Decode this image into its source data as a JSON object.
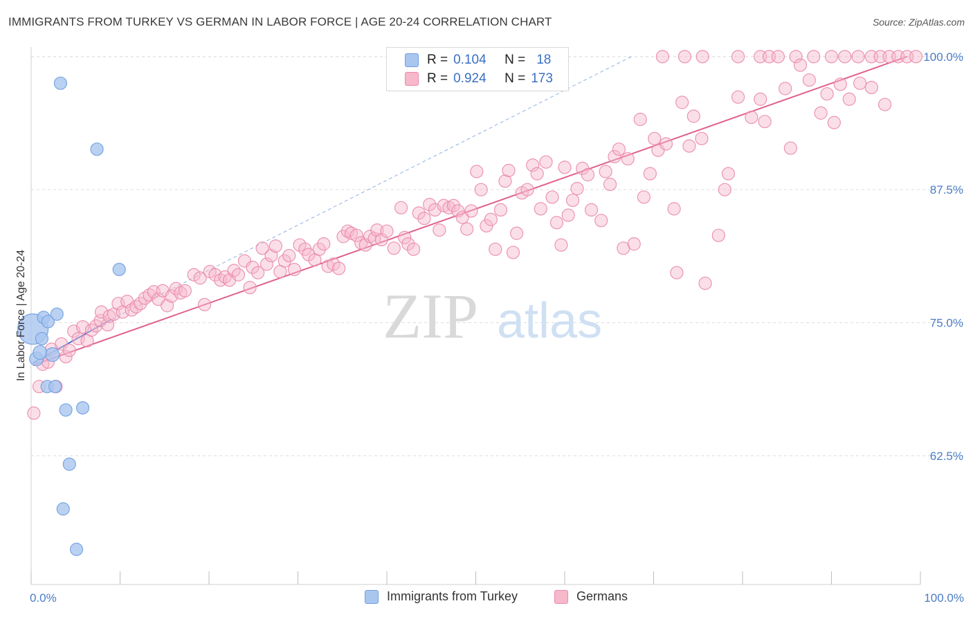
{
  "title": "IMMIGRANTS FROM TURKEY VS GERMAN IN LABOR FORCE | AGE 20-24 CORRELATION CHART",
  "source": "Source: ZipAtlas.com",
  "watermark": {
    "zip": "ZIP",
    "atlas": "atlas"
  },
  "legend": {
    "r_label": "R =",
    "n_label": "N =",
    "series": [
      {
        "name": "Immigrants from Turkey",
        "r": "0.104",
        "n": "18",
        "color": "#a9c6ef",
        "stroke": "#6f9fe0"
      },
      {
        "name": "Germans",
        "r": "0.924",
        "n": "173",
        "color": "#f7b8cb",
        "stroke": "#e98aa8"
      }
    ]
  },
  "chart_data": {
    "type": "scatter",
    "title": "IMMIGRANTS FROM TURKEY VS GERMAN IN LABOR FORCE | AGE 20-24 CORRELATION CHART",
    "xlabel": "",
    "ylabel": "In Labor Force | Age 20-24",
    "xlim": [
      0,
      100
    ],
    "ylim": [
      50.4,
      100.9
    ],
    "x_tick_labels": [
      "0.0%",
      "100.0%"
    ],
    "y_ticks": [
      62.5,
      75.0,
      87.5,
      100.0
    ],
    "y_tick_labels": [
      "62.5%",
      "75.0%",
      "87.5%",
      "100.0%"
    ],
    "grid": "horizontal dashed",
    "legend_position": "top-center",
    "series": [
      {
        "name": "Immigrants from Turkey",
        "color": "#a9c6ef",
        "stroke": "#6f9fe0",
        "trend": {
          "x0": 0.2,
          "y0": 71.2,
          "x1": 9.0,
          "y1": 75.3,
          "dashed_to": [
            67.5,
            100.0
          ]
        },
        "points": [
          [
            0.2,
            74.4,
            22
          ],
          [
            0.6,
            71.6,
            10
          ],
          [
            1.0,
            72.2,
            10
          ],
          [
            1.2,
            73.5,
            9
          ],
          [
            1.4,
            75.5,
            9
          ],
          [
            1.9,
            75.1,
            9
          ],
          [
            2.4,
            72.0,
            10
          ],
          [
            2.9,
            75.8,
            9
          ],
          [
            1.8,
            69.0,
            9
          ],
          [
            2.7,
            69.0,
            9
          ],
          [
            3.3,
            97.5,
            9
          ],
          [
            7.4,
            91.3,
            9
          ],
          [
            3.9,
            66.8,
            9
          ],
          [
            5.8,
            67.0,
            9
          ],
          [
            9.9,
            80.0,
            9
          ],
          [
            4.3,
            61.7,
            9
          ],
          [
            3.6,
            57.5,
            9
          ],
          [
            5.1,
            53.7,
            9
          ]
        ]
      },
      {
        "name": "Germans",
        "color": "#f7b8cb",
        "stroke": "#e98aa8",
        "trend": {
          "x0": 0.2,
          "y0": 71.0,
          "x1": 98.5,
          "y1": 100.0
        },
        "points": [
          [
            0.3,
            66.5
          ],
          [
            0.9,
            69.0
          ],
          [
            1.3,
            71.1
          ],
          [
            1.9,
            71.3
          ],
          [
            2.3,
            72.5
          ],
          [
            2.8,
            69.0
          ],
          [
            3.4,
            73.0
          ],
          [
            3.9,
            71.8
          ],
          [
            4.3,
            72.4
          ],
          [
            4.8,
            74.2
          ],
          [
            5.3,
            73.5
          ],
          [
            5.8,
            74.6
          ],
          [
            6.3,
            73.3
          ],
          [
            6.8,
            74.3
          ],
          [
            7.3,
            74.7
          ],
          [
            7.8,
            75.2
          ],
          [
            7.9,
            76.0
          ],
          [
            8.6,
            74.8
          ],
          [
            8.8,
            75.6
          ],
          [
            9.3,
            75.8
          ],
          [
            9.8,
            76.8
          ],
          [
            10.3,
            76.0
          ],
          [
            10.8,
            77.0
          ],
          [
            11.3,
            76.2
          ],
          [
            11.8,
            76.5
          ],
          [
            12.3,
            76.8
          ],
          [
            12.8,
            77.3
          ],
          [
            13.3,
            77.6
          ],
          [
            13.8,
            77.9
          ],
          [
            14.3,
            77.2
          ],
          [
            14.8,
            78.0
          ],
          [
            15.3,
            76.6
          ],
          [
            15.8,
            77.5
          ],
          [
            16.3,
            78.2
          ],
          [
            16.8,
            77.8
          ],
          [
            17.3,
            78.0
          ],
          [
            18.3,
            79.5
          ],
          [
            19.0,
            79.2
          ],
          [
            19.5,
            76.7
          ],
          [
            20.1,
            79.8
          ],
          [
            20.7,
            79.5
          ],
          [
            21.3,
            79.0
          ],
          [
            21.8,
            79.3
          ],
          [
            22.3,
            79.0
          ],
          [
            22.8,
            79.9
          ],
          [
            23.3,
            79.5
          ],
          [
            24.0,
            80.8
          ],
          [
            24.6,
            78.3
          ],
          [
            24.9,
            80.2
          ],
          [
            25.5,
            79.7
          ],
          [
            26.0,
            82.0
          ],
          [
            26.5,
            80.5
          ],
          [
            27.0,
            81.3
          ],
          [
            27.5,
            82.2
          ],
          [
            28.0,
            79.8
          ],
          [
            28.5,
            80.8
          ],
          [
            29.0,
            81.3
          ],
          [
            29.6,
            80.0
          ],
          [
            30.2,
            82.3
          ],
          [
            30.8,
            81.9
          ],
          [
            31.2,
            81.4
          ],
          [
            31.9,
            80.9
          ],
          [
            32.4,
            81.9
          ],
          [
            32.9,
            82.4
          ],
          [
            33.4,
            80.3
          ],
          [
            34.0,
            80.5
          ],
          [
            34.6,
            80.1
          ],
          [
            35.1,
            83.1
          ],
          [
            35.6,
            83.6
          ],
          [
            36.0,
            83.4
          ],
          [
            36.6,
            83.2
          ],
          [
            37.1,
            82.5
          ],
          [
            37.6,
            82.3
          ],
          [
            38.1,
            83.1
          ],
          [
            38.6,
            82.9
          ],
          [
            38.9,
            83.7
          ],
          [
            39.4,
            82.8
          ],
          [
            40.0,
            83.6
          ],
          [
            40.8,
            82.0
          ],
          [
            41.6,
            85.8
          ],
          [
            42.0,
            83.0
          ],
          [
            42.4,
            82.4
          ],
          [
            43.0,
            81.9
          ],
          [
            43.6,
            85.3
          ],
          [
            44.2,
            84.8
          ],
          [
            44.8,
            86.1
          ],
          [
            45.4,
            85.6
          ],
          [
            45.9,
            83.7
          ],
          [
            46.4,
            86.0
          ],
          [
            47.0,
            85.8
          ],
          [
            47.5,
            86.0
          ],
          [
            48.0,
            85.5
          ],
          [
            48.5,
            84.9
          ],
          [
            49.0,
            83.8
          ],
          [
            49.5,
            85.5
          ],
          [
            50.1,
            89.2
          ],
          [
            50.6,
            87.5
          ],
          [
            51.2,
            84.1
          ],
          [
            51.7,
            84.7
          ],
          [
            52.2,
            81.9
          ],
          [
            52.8,
            85.6
          ],
          [
            53.3,
            88.3
          ],
          [
            53.7,
            89.3
          ],
          [
            54.2,
            81.6
          ],
          [
            54.6,
            83.4
          ],
          [
            55.2,
            87.2
          ],
          [
            55.8,
            87.5
          ],
          [
            56.4,
            89.8
          ],
          [
            56.9,
            89.0
          ],
          [
            57.3,
            85.7
          ],
          [
            57.9,
            90.1
          ],
          [
            58.6,
            86.8
          ],
          [
            59.1,
            84.4
          ],
          [
            59.6,
            82.3
          ],
          [
            60.0,
            89.6
          ],
          [
            60.4,
            85.1
          ],
          [
            60.9,
            86.5
          ],
          [
            61.4,
            87.6
          ],
          [
            62.0,
            89.5
          ],
          [
            62.6,
            88.9
          ],
          [
            63.0,
            85.6
          ],
          [
            64.1,
            84.6
          ],
          [
            64.6,
            89.2
          ],
          [
            65.1,
            88.0
          ],
          [
            65.6,
            90.6
          ],
          [
            66.1,
            91.3
          ],
          [
            66.6,
            82.0
          ],
          [
            67.1,
            90.4
          ],
          [
            67.8,
            82.4
          ],
          [
            68.5,
            94.1
          ],
          [
            68.9,
            86.8
          ],
          [
            69.6,
            89.0
          ],
          [
            70.1,
            92.3
          ],
          [
            70.5,
            91.2
          ],
          [
            71.4,
            91.8
          ],
          [
            72.3,
            85.7
          ],
          [
            72.6,
            79.7
          ],
          [
            73.2,
            95.7
          ],
          [
            74.0,
            91.6
          ],
          [
            74.5,
            94.4
          ],
          [
            75.4,
            92.3
          ],
          [
            75.8,
            78.7
          ],
          [
            77.3,
            83.2
          ],
          [
            78.0,
            87.5
          ],
          [
            78.4,
            89.0
          ],
          [
            79.5,
            96.2
          ],
          [
            81.0,
            94.3
          ],
          [
            82.0,
            96.0
          ],
          [
            82.5,
            93.9
          ],
          [
            84.8,
            97.0
          ],
          [
            85.4,
            91.4
          ],
          [
            71.0,
            100.0
          ],
          [
            73.5,
            100.0
          ],
          [
            75.5,
            100.0
          ],
          [
            79.5,
            100.0
          ],
          [
            82.0,
            100.0
          ],
          [
            83.0,
            100.0
          ],
          [
            84.0,
            100.0
          ],
          [
            86.0,
            100.0
          ],
          [
            88.0,
            100.0
          ],
          [
            90.0,
            100.0
          ],
          [
            91.5,
            100.0
          ],
          [
            93.0,
            100.0
          ],
          [
            94.5,
            100.0
          ],
          [
            95.5,
            100.0
          ],
          [
            96.5,
            100.0
          ],
          [
            97.5,
            100.0
          ],
          [
            98.5,
            100.0
          ],
          [
            99.5,
            100.0
          ],
          [
            91.0,
            97.4
          ],
          [
            92.0,
            96.0
          ],
          [
            93.2,
            97.5
          ],
          [
            94.5,
            97.1
          ],
          [
            96.0,
            95.5
          ],
          [
            89.5,
            96.5
          ],
          [
            87.5,
            97.8
          ],
          [
            86.5,
            99.2
          ],
          [
            88.8,
            94.7
          ],
          [
            90.3,
            93.8
          ]
        ]
      }
    ]
  }
}
